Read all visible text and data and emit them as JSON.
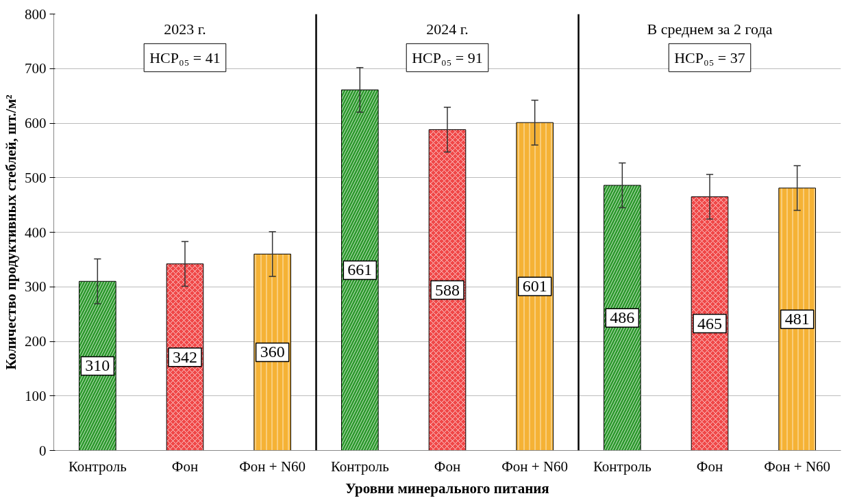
{
  "chart_data": {
    "type": "bar",
    "categories": [
      "Контроль",
      "Фон",
      "Фон + N60",
      "Контроль",
      "Фон",
      "Фон + N60",
      "Контроль",
      "Фон",
      "Фон + N60"
    ],
    "values": [
      310,
      342,
      360,
      661,
      588,
      601,
      486,
      465,
      481
    ],
    "colors": [
      "#2e9a2e",
      "#f04848",
      "#f5b235",
      "#2e9a2e",
      "#f04848",
      "#f5b235",
      "#2e9a2e",
      "#f04848",
      "#f5b235"
    ],
    "errors": [
      41,
      41,
      41,
      41,
      41,
      41,
      41,
      41,
      41
    ],
    "data_labels": true,
    "ylim": [
      0,
      800
    ],
    "yticks": [
      0,
      100,
      200,
      300,
      400,
      500,
      600,
      700,
      800
    ],
    "ylabel": "Количество продуктивных стеблей, шт./м²",
    "xlabel": "Уровни минерального питания",
    "annotations": [
      "2023 г.",
      "НСР₀₅ = 41",
      "2024 г.",
      "НСР₀₅ = 91",
      "В среднем за 2 года",
      "НСР₀₅ = 37"
    ],
    "grid": "y"
  }
}
